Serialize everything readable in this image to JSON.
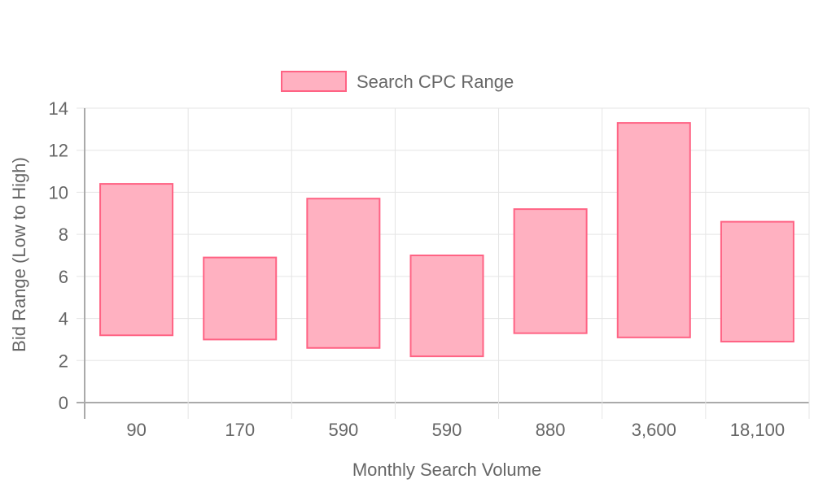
{
  "chart_data": {
    "type": "bar",
    "subtype": "floating-range",
    "categories": [
      "90",
      "170",
      "590",
      "590",
      "880",
      "3,600",
      "18,100"
    ],
    "series": [
      {
        "name": "Search CPC Range",
        "ranges": [
          [
            3.2,
            10.4
          ],
          [
            3.0,
            6.9
          ],
          [
            2.6,
            9.7
          ],
          [
            2.2,
            7.0
          ],
          [
            3.3,
            9.2
          ],
          [
            3.1,
            13.3
          ],
          [
            2.9,
            8.6
          ]
        ]
      }
    ],
    "xlabel": "Monthly Search Volume",
    "ylabel": "Bid Range (Low to High)",
    "ylim": [
      0,
      14
    ],
    "yticks": [
      "0",
      "2",
      "4",
      "6",
      "8",
      "10",
      "12",
      "14"
    ],
    "grid": true,
    "legend_position": "top-center",
    "colors": {
      "bar_fill": "#ffb1c1",
      "bar_border": "#ff6384",
      "grid": "#e5e5e5",
      "axis": "#aaaaaa",
      "text": "#666666"
    }
  }
}
